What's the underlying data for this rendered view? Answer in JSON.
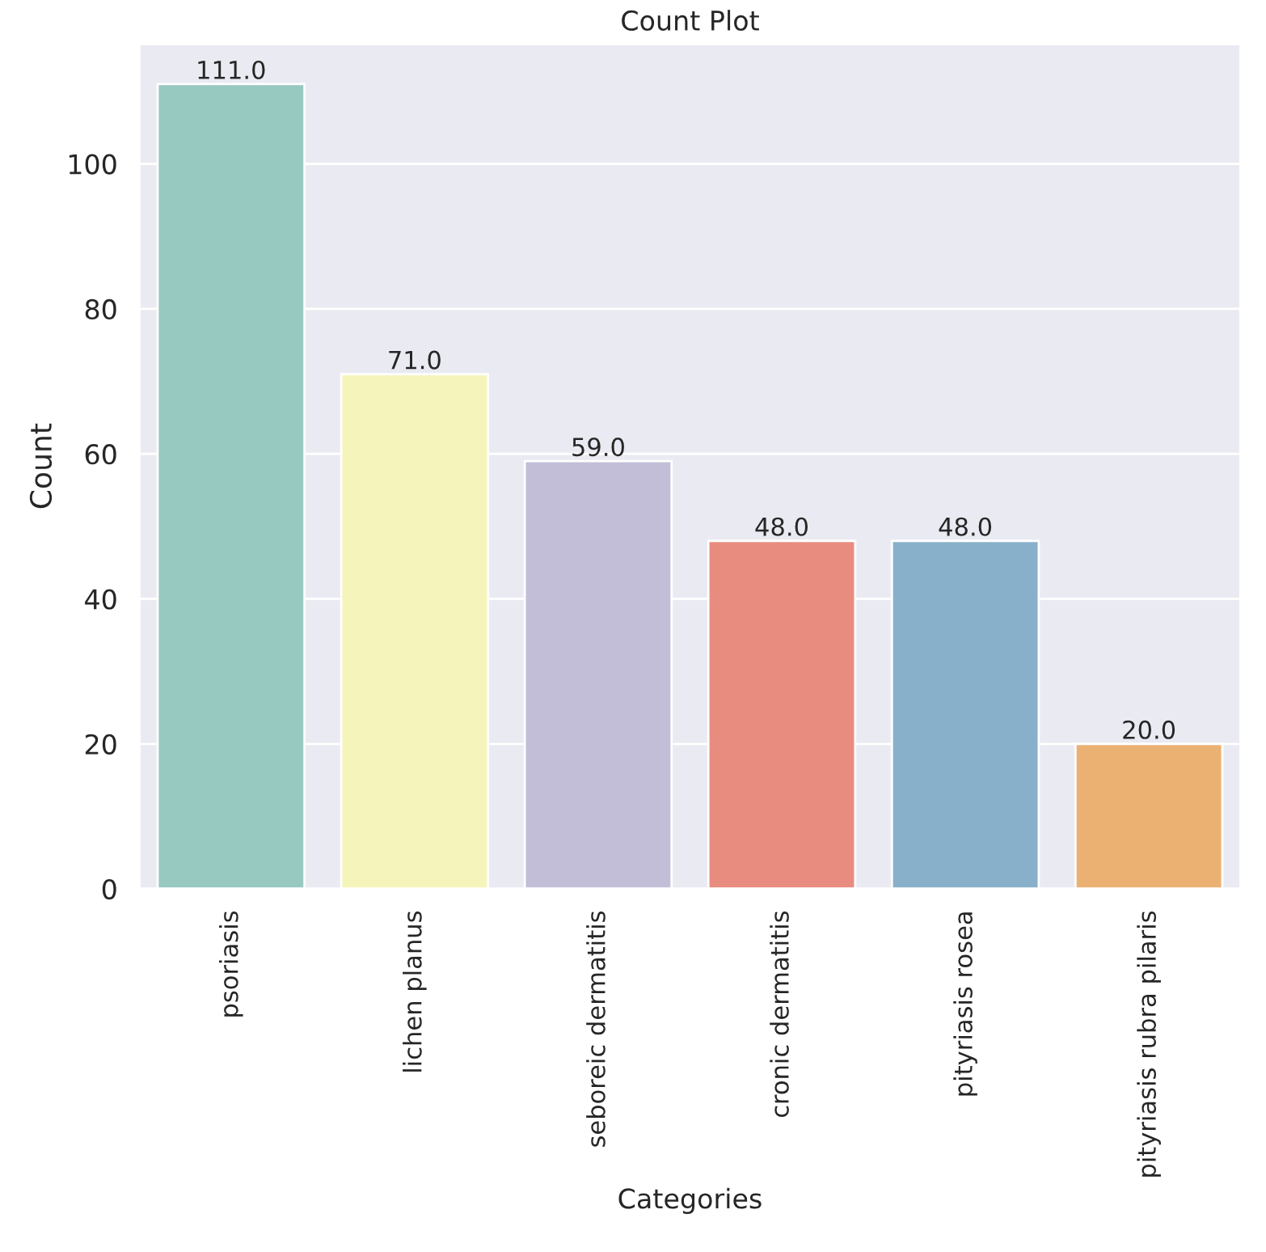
{
  "chart_data": {
    "type": "bar",
    "title": "Count Plot",
    "xlabel": "Categories",
    "ylabel": "Count",
    "categories": [
      "psoriasis",
      "lichen planus",
      "seboreic dermatitis",
      "cronic dermatitis",
      "pityriasis rosea",
      "pityriasis rubra pilaris"
    ],
    "values": [
      111,
      71,
      59,
      48,
      48,
      20
    ],
    "colors": [
      "#97c9c0",
      "#f5f5bb",
      "#c2bed8",
      "#e98c80",
      "#89b0ca",
      "#ebb173"
    ],
    "value_labels": [
      "111.0",
      "71.0",
      "59.0",
      "48.0",
      "48.0",
      "20.0"
    ],
    "ylim": [
      0,
      116.55
    ],
    "yticks": [
      0,
      20,
      40,
      60,
      80,
      100
    ],
    "grid": "y"
  }
}
